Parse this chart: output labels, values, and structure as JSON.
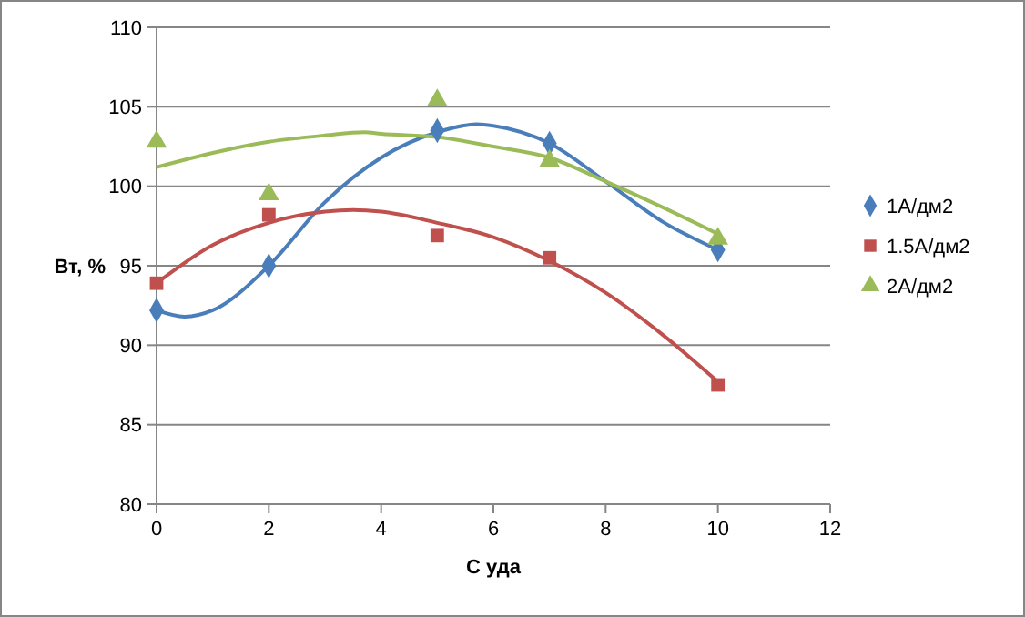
{
  "chart_data": {
    "type": "scatter",
    "xlabel": "С уда",
    "ylabel": "Вт, %",
    "xlim": [
      0,
      12
    ],
    "xticks": [
      0,
      2,
      4,
      6,
      8,
      10,
      12
    ],
    "ylim": [
      80,
      110
    ],
    "yticks": [
      80,
      85,
      90,
      95,
      100,
      105,
      110
    ],
    "grid": "y",
    "legend": "right",
    "line_style": "solid",
    "series": [
      {
        "name": "1A/дм2",
        "color": "#4a7ebb",
        "marker": "diamond",
        "x": [
          0,
          2,
          5,
          7,
          10
        ],
        "values": [
          92.2,
          95,
          103.5,
          102.7,
          96
        ]
      },
      {
        "name": "1.5A/дм2",
        "color": "#c0504d",
        "marker": "square",
        "x": [
          0,
          2,
          5,
          7,
          10
        ],
        "values": [
          93.9,
          98.2,
          96.9,
          95.5,
          87.5
        ]
      },
      {
        "name": "2A/дм2",
        "color": "#9bbb59",
        "marker": "triangle",
        "x": [
          0,
          2,
          5,
          7,
          10
        ],
        "values": [
          102.8,
          99.5,
          105.4,
          101.6,
          96.7
        ]
      },
      {
        "type": "line",
        "color": "#4a7ebb",
        "marker": "none",
        "x": [
          0,
          0.5,
          1,
          2,
          3,
          4,
          5,
          5.7,
          6,
          7,
          8,
          9,
          10
        ],
        "values": [
          92.2,
          91.8,
          92.2,
          95,
          99,
          101.8,
          103.4,
          103.9,
          103.8,
          102.7,
          100.3,
          97.8,
          96
        ]
      },
      {
        "type": "line",
        "color": "#c0504d",
        "marker": "none",
        "x": [
          0,
          1,
          2,
          3,
          3.5,
          4,
          5,
          6,
          7,
          8,
          9,
          10
        ],
        "values": [
          93.9,
          96.3,
          97.7,
          98.4,
          98.5,
          98.4,
          97.7,
          96.8,
          95.3,
          93.3,
          90.7,
          87.7
        ]
      },
      {
        "type": "line",
        "color": "#9bbb59",
        "marker": "none",
        "x": [
          0,
          1,
          2,
          3,
          3.7,
          4,
          5,
          6,
          7,
          8,
          9,
          10
        ],
        "values": [
          101.2,
          102.1,
          102.8,
          103.2,
          103.4,
          103.3,
          103.1,
          102.5,
          101.8,
          100.3,
          98.7,
          97
        ]
      }
    ]
  }
}
